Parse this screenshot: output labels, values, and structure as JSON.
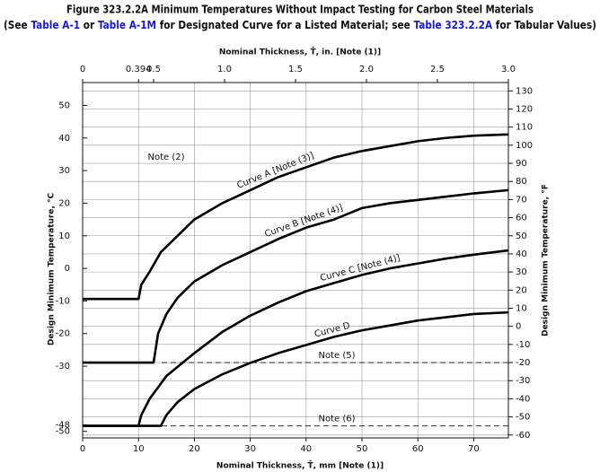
{
  "chart_data": {
    "type": "line",
    "title": "Figure 323.2.2A Minimum Temperatures Without Impact Testing for Carbon Steel Materials",
    "subtitle_parts": [
      {
        "text": "(See ",
        "link": false
      },
      {
        "text": "Table A-1",
        "link": true
      },
      {
        "text": " or ",
        "link": false
      },
      {
        "text": "Table A-1M",
        "link": true
      },
      {
        "text": " for Designated Curve for a Listed Material; see ",
        "link": false
      },
      {
        "text": "Table 323.2.2A",
        "link": true
      },
      {
        "text": " for Tabular Values)",
        "link": false
      }
    ],
    "link_color": "#1a1adc",
    "xlabel": "Nominal Thickness, T̄, mm [Note (1)]",
    "x2label": "Nominal Thickness, T̄, in. [Note (1)]",
    "ylabel": "Design Minimum Temperature, °C",
    "y2label": "Design Minimum Temperature, °F",
    "xlim": [
      0,
      76.2
    ],
    "xticks": [
      0,
      10,
      20,
      30,
      40,
      50,
      60,
      70
    ],
    "x2lim": [
      0,
      3.0
    ],
    "x2ticks": [
      0,
      0.394,
      0.5,
      {
        "value": 1,
        "label": "1.0"
      },
      1.5,
      {
        "value": 2,
        "label": "2.0"
      },
      2.5,
      {
        "value": 3,
        "label": "3.0"
      }
    ],
    "ylim": [
      -52,
      57
    ],
    "yticks": [
      50,
      40,
      30,
      20,
      10,
      0,
      -10,
      -20,
      -30,
      -48,
      -50
    ],
    "y2lim": [
      -61.6,
      134.6
    ],
    "y2ticks": [
      -60,
      -50,
      -40,
      -30,
      -20,
      -10,
      0,
      10,
      20,
      30,
      40,
      50,
      60,
      70,
      80,
      90,
      100,
      110,
      120,
      130
    ],
    "grid": true,
    "series": [
      {
        "name": "Curve A [Note (3)]",
        "color": "#000000",
        "x": [
          0,
          10,
          10.5,
          12,
          14,
          17,
          20,
          25,
          30,
          35,
          40,
          45,
          50,
          55,
          60,
          65,
          70,
          76.2
        ],
        "values": [
          -9.4,
          -9.4,
          -5,
          -1,
          5,
          10,
          15,
          20,
          24,
          28,
          31,
          34,
          36,
          37.5,
          39,
          40,
          40.7,
          41.1
        ]
      },
      {
        "name": "Curve B [Note (4)]",
        "color": "#000000",
        "x": [
          0,
          12.7,
          13.5,
          15,
          17,
          20,
          25,
          30,
          35,
          40,
          45,
          50,
          55,
          60,
          65,
          70,
          76.2
        ],
        "values": [
          -28.9,
          -28.9,
          -20,
          -14,
          -9,
          -4,
          1,
          5,
          9,
          12.5,
          15,
          18.5,
          20,
          21,
          22,
          23,
          24
        ]
      },
      {
        "name": "Curve C [Note (4)]",
        "color": "#000000",
        "x": [
          0,
          10,
          10.5,
          12,
          15,
          20,
          25,
          30,
          35,
          40,
          45,
          50,
          55,
          60,
          65,
          70,
          76.2
        ],
        "values": [
          -48.3,
          -48.3,
          -45,
          -40,
          -33,
          -26,
          -19.5,
          -14.5,
          -10.5,
          -7,
          -4.5,
          -2,
          0,
          1.5,
          3,
          4.2,
          5.5
        ]
      },
      {
        "name": "Curve D",
        "color": "#000000",
        "x": [
          0,
          14,
          15,
          17,
          20,
          25,
          30,
          35,
          40,
          45,
          50,
          55,
          60,
          65,
          70,
          76.2
        ],
        "values": [
          -48.3,
          -48.3,
          -45,
          -41,
          -37,
          -32.5,
          -29,
          -26,
          -23.5,
          -21,
          -19,
          -17.5,
          -16,
          -15,
          -14,
          -13.5
        ]
      }
    ],
    "reference_lines": [
      {
        "label": "Note (5)",
        "value": -20,
        "axis": "y2"
      },
      {
        "label": "Note (6)",
        "value": -55,
        "axis": "y2"
      }
    ],
    "annotations": [
      {
        "text": "Note (2)"
      }
    ]
  }
}
